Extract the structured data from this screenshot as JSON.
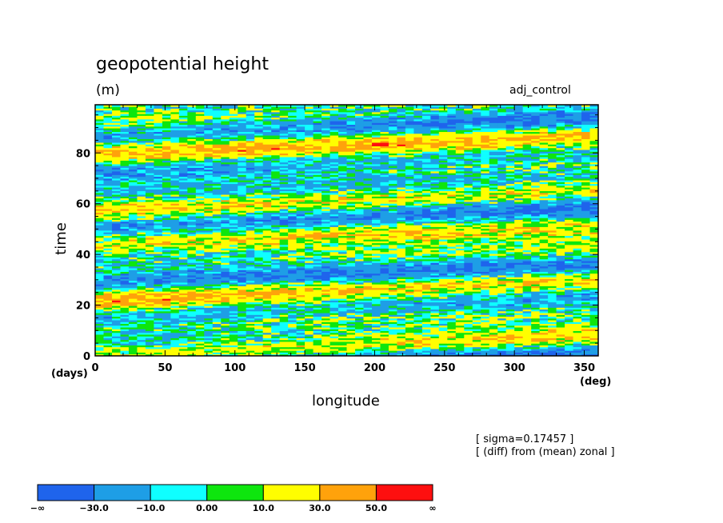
{
  "chart_data": {
    "type": "heatmap",
    "title": "geopotential height",
    "units": "(m)",
    "run_label": "adj_control",
    "xlabel": "longitude",
    "ylabel": "time",
    "x_unit": "(deg)",
    "y_unit": "(days)",
    "xlim": [
      0,
      360
    ],
    "ylim": [
      0,
      99
    ],
    "xticks": [
      0,
      50,
      100,
      150,
      200,
      250,
      300,
      350
    ],
    "yticks": [
      0,
      20,
      40,
      60,
      80
    ],
    "annotations": [
      "[ sigma=0.17457 ]",
      "[ (diff) from (mean) zonal ]"
    ],
    "colorbar": {
      "labels": [
        "−∞",
        "−30.0",
        "−10.0",
        "0.00",
        "10.0",
        "30.0",
        "50.0",
        "∞"
      ],
      "colors": [
        "#1f64ec",
        "#1e9ee6",
        "#0fffff",
        "#0ee60e",
        "#fffe00",
        "#ffa20b",
        "#fe0f0f"
      ]
    },
    "pattern": {
      "bands": [
        {
          "t0": 2,
          "t1": 22,
          "sign": "negative"
        },
        {
          "t0": 10,
          "t1": 28,
          "sign": "positive"
        },
        {
          "t0": 24,
          "t1": 36,
          "sign": "negative"
        },
        {
          "t0": 34,
          "t1": 48,
          "sign": "positive"
        },
        {
          "t0": 48,
          "t1": 64,
          "sign": "negative"
        },
        {
          "t0": 62,
          "t1": 76,
          "sign": "positive"
        },
        {
          "t0": 72,
          "t1": 88,
          "sign": "negative"
        },
        {
          "t0": 82,
          "t1": 92,
          "sign": "positive"
        }
      ]
    }
  }
}
